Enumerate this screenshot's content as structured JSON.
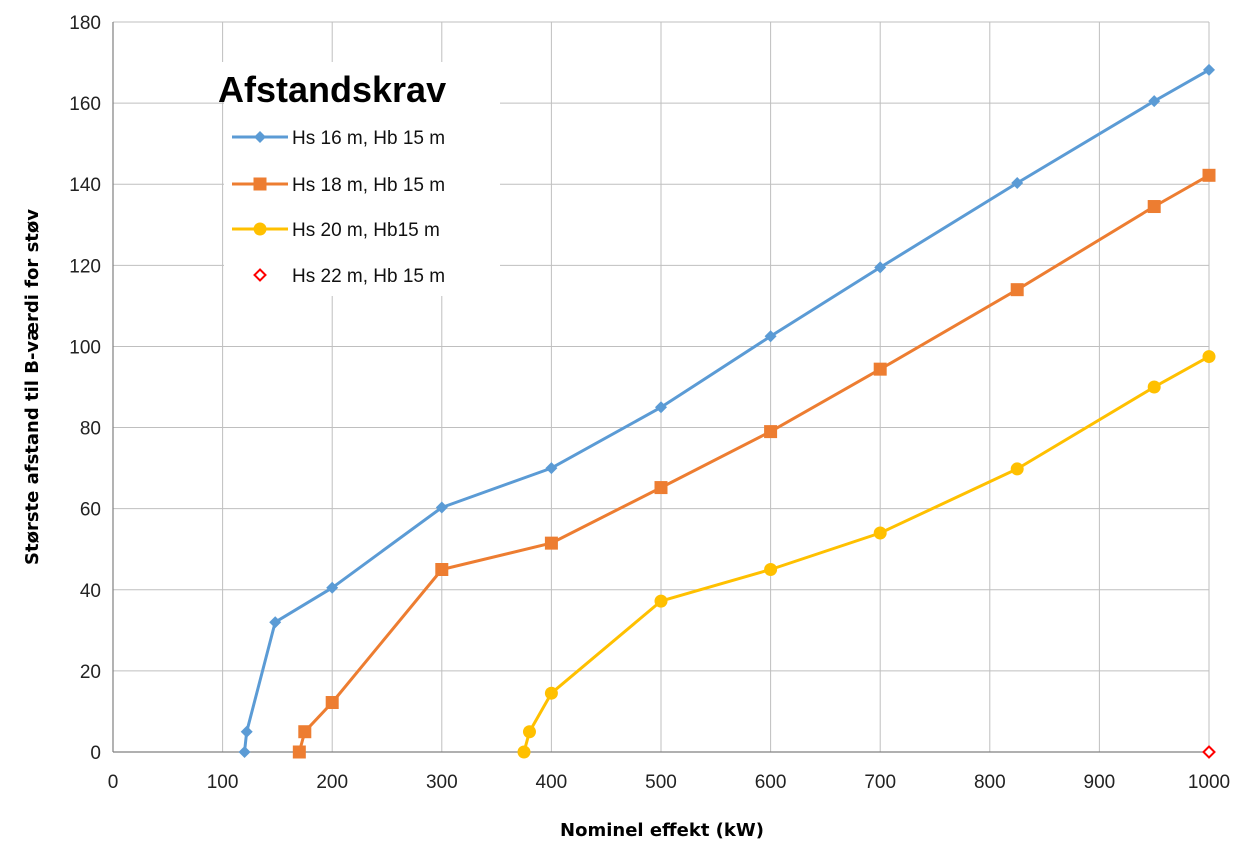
{
  "chart_data": {
    "type": "line",
    "title": "",
    "xlabel": "Nominel effekt (kW)",
    "ylabel": "Største afstand til B-værdi for støv",
    "xlim": [
      0,
      1000
    ],
    "ylim": [
      0,
      180
    ],
    "xticks": [
      0,
      100,
      200,
      300,
      400,
      500,
      600,
      700,
      800,
      900,
      1000
    ],
    "yticks": [
      0,
      20,
      40,
      60,
      80,
      100,
      120,
      140,
      160,
      180
    ],
    "grid": true,
    "legend": {
      "title": "Afstandskrav",
      "placement": "top-left"
    },
    "series": [
      {
        "name": "Hs  16 m, Hb 15 m",
        "color": "#5b9bd5",
        "marker": "diamond",
        "points": [
          [
            120,
            0
          ],
          [
            122,
            5
          ],
          [
            148,
            32
          ],
          [
            200,
            40.5
          ],
          [
            300,
            60.3
          ],
          [
            400,
            70
          ],
          [
            500,
            85
          ],
          [
            600,
            102.5
          ],
          [
            700,
            119.5
          ],
          [
            825,
            140.3
          ],
          [
            950,
            160.5
          ],
          [
            1000,
            168.2
          ]
        ]
      },
      {
        "name": "Hs 18 m, Hb 15 m",
        "color": "#ed7d31",
        "marker": "square",
        "points": [
          [
            170,
            0
          ],
          [
            175,
            5
          ],
          [
            200,
            12.2
          ],
          [
            300,
            45
          ],
          [
            400,
            51.5
          ],
          [
            500,
            65.2
          ],
          [
            600,
            79
          ],
          [
            700,
            94.4
          ],
          [
            825,
            114
          ],
          [
            950,
            134.5
          ],
          [
            1000,
            142.2
          ]
        ]
      },
      {
        "name": "Hs  20 m, Hb15 m",
        "color": "#ffc000",
        "marker": "circle",
        "points": [
          [
            375,
            0
          ],
          [
            380,
            5
          ],
          [
            400,
            14.5
          ],
          [
            500,
            37.2
          ],
          [
            600,
            45
          ],
          [
            700,
            54
          ],
          [
            825,
            69.8
          ],
          [
            950,
            90
          ],
          [
            1000,
            97.5
          ]
        ]
      },
      {
        "name": "Hs  22 m, Hb 15 m",
        "color": "#ff0000",
        "marker": "diamond-open",
        "points": [
          [
            1000,
            0
          ]
        ]
      }
    ]
  }
}
